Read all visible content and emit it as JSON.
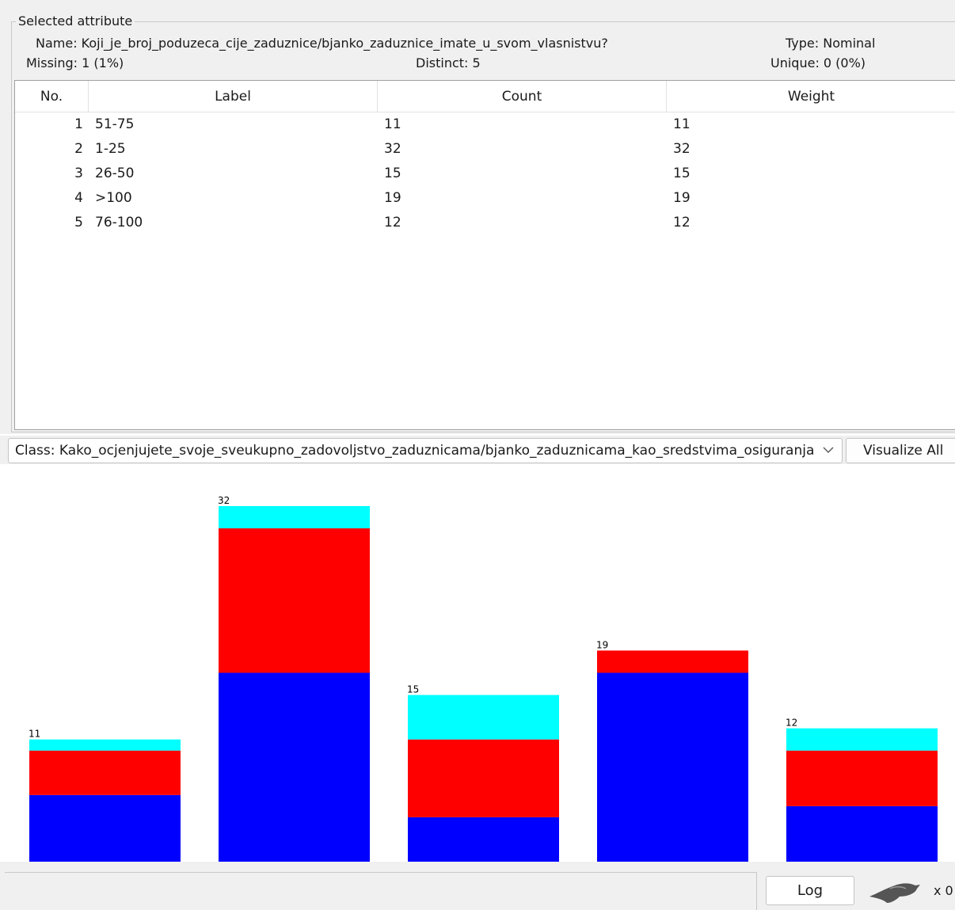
{
  "attribute": {
    "group_title": "Selected attribute",
    "name_text": "Name: Koji_je_broj_poduzeca_cije_zaduznice/bjanko_zaduznice_imate_u_svom_vlasnistvu?",
    "type_text": "Type: Nominal",
    "missing_text": "Missing: 1 (1%)",
    "distinct_text": "Distinct: 5",
    "unique_text": "Unique: 0 (0%)"
  },
  "table": {
    "headers": {
      "no": "No.",
      "label": "Label",
      "count": "Count",
      "weight": "Weight"
    },
    "rows": [
      {
        "no": "1",
        "label": "51-75",
        "count": "11",
        "weight": "11"
      },
      {
        "no": "2",
        "label": "1-25",
        "count": "32",
        "weight": "32"
      },
      {
        "no": "3",
        "label": "26-50",
        "count": "15",
        "weight": "15"
      },
      {
        "no": "4",
        "label": ">100",
        "count": "19",
        "weight": "19"
      },
      {
        "no": "5",
        "label": "76-100",
        "count": "12",
        "weight": "12"
      }
    ]
  },
  "class_select": {
    "value": "Class: Kako_ocjenjujete_svoje_sveukupno_zadovoljstvo_zaduznicama/bjanko_zaduznicama_kao_sredstvima_osiguranja? (..."
  },
  "visualize_all_label": "Visualize All",
  "log_label": "Log",
  "x_count": "x 0",
  "icons": {
    "class_dropdown": "chevron-down-icon",
    "status": "weka-bird-icon"
  },
  "chart_data": {
    "type": "bar",
    "stacked": true,
    "categories": [
      "51-75",
      "1-25",
      "26-50",
      ">100",
      "76-100"
    ],
    "totals": [
      11,
      32,
      15,
      19,
      12
    ],
    "series": [
      {
        "color": "#0000ff",
        "values": [
          6,
          17,
          4,
          17,
          5
        ]
      },
      {
        "color": "#ff0000",
        "values": [
          4,
          13,
          7,
          2,
          5
        ]
      },
      {
        "color": "#00ffff",
        "values": [
          1,
          2,
          4,
          0,
          2
        ]
      }
    ],
    "ylim": [
      0,
      32
    ]
  }
}
